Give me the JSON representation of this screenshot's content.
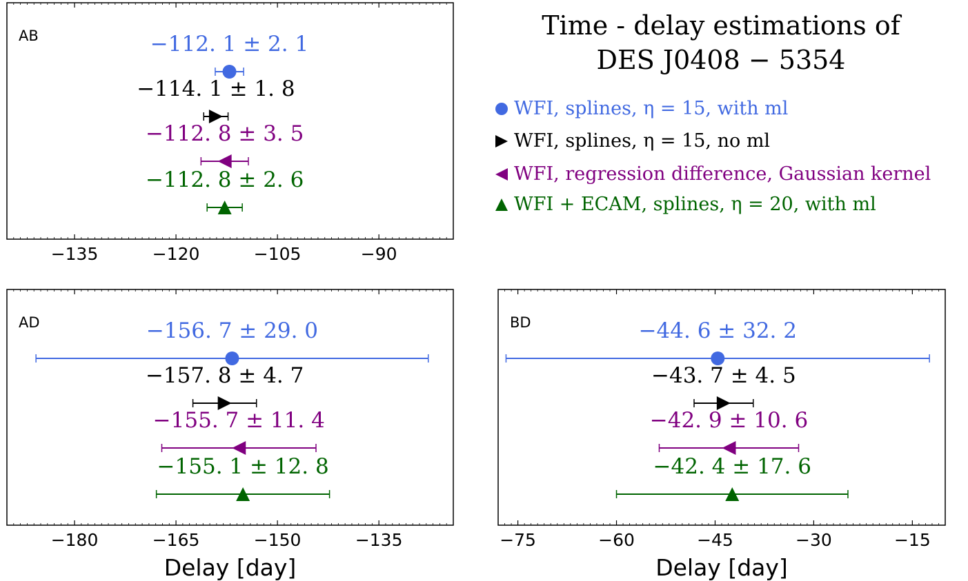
{
  "title_lines": [
    "Time - delay estimations of",
    "DES J0408 − 5354"
  ],
  "legend": [
    {
      "marker": "circle",
      "color": "#4169e1",
      "label": "WFI, splines, η = 15, with ml"
    },
    {
      "marker": "triangle-right",
      "color": "#000000",
      "label": "WFI, splines, η = 15, no ml"
    },
    {
      "marker": "triangle-left",
      "color": "#800080",
      "label": "WFI, regression difference, Gaussian kernel"
    },
    {
      "marker": "triangle-up",
      "color": "#006400",
      "label": "WFI + ECAM, splines, η = 20, with ml"
    }
  ],
  "chart_data": [
    {
      "type": "errorbar",
      "panel": "AB",
      "xlabel": "",
      "xlim": [
        -145,
        -79
      ],
      "xticks": [
        -135,
        -120,
        -105,
        -90
      ],
      "series": [
        {
          "marker": "circle",
          "color": "#4169e1",
          "value": -112.1,
          "err": 2.1,
          "label": "−112. 1 ± 2. 1"
        },
        {
          "marker": "triangle-right",
          "color": "#000000",
          "value": -114.1,
          "err": 1.8,
          "label": "−114. 1 ± 1. 8"
        },
        {
          "marker": "triangle-left",
          "color": "#800080",
          "value": -112.8,
          "err": 3.5,
          "label": "−112. 8 ± 3. 5"
        },
        {
          "marker": "triangle-up",
          "color": "#006400",
          "value": -112.8,
          "err": 2.6,
          "label": "−112. 8 ± 2. 6"
        }
      ]
    },
    {
      "type": "errorbar",
      "panel": "AD",
      "xlabel": "Delay [day]",
      "xlim": [
        -190,
        -124
      ],
      "xticks": [
        -180,
        -165,
        -150,
        -135
      ],
      "series": [
        {
          "marker": "circle",
          "color": "#4169e1",
          "value": -156.7,
          "err": 29.0,
          "label": "−156. 7 ± 29. 0"
        },
        {
          "marker": "triangle-right",
          "color": "#000000",
          "value": -157.8,
          "err": 4.7,
          "label": "−157. 8 ± 4. 7"
        },
        {
          "marker": "triangle-left",
          "color": "#800080",
          "value": -155.7,
          "err": 11.4,
          "label": "−155. 7 ± 11. 4"
        },
        {
          "marker": "triangle-up",
          "color": "#006400",
          "value": -155.1,
          "err": 12.8,
          "label": "−155. 1 ± 12. 8"
        }
      ]
    },
    {
      "type": "errorbar",
      "panel": "BD",
      "xlabel": "Delay [day]",
      "xlim": [
        -78,
        -10
      ],
      "xticks": [
        -75,
        -60,
        -45,
        -30,
        -15
      ],
      "series": [
        {
          "marker": "circle",
          "color": "#4169e1",
          "value": -44.6,
          "err": 32.2,
          "label": "−44. 6 ± 32. 2"
        },
        {
          "marker": "triangle-right",
          "color": "#000000",
          "value": -43.7,
          "err": 4.5,
          "label": "−43. 7 ± 4. 5"
        },
        {
          "marker": "triangle-left",
          "color": "#800080",
          "value": -42.9,
          "err": 10.6,
          "label": "−42. 9 ± 10. 6"
        },
        {
          "marker": "triangle-up",
          "color": "#006400",
          "value": -42.4,
          "err": 17.6,
          "label": "−42. 4 ± 17. 6"
        }
      ]
    }
  ]
}
